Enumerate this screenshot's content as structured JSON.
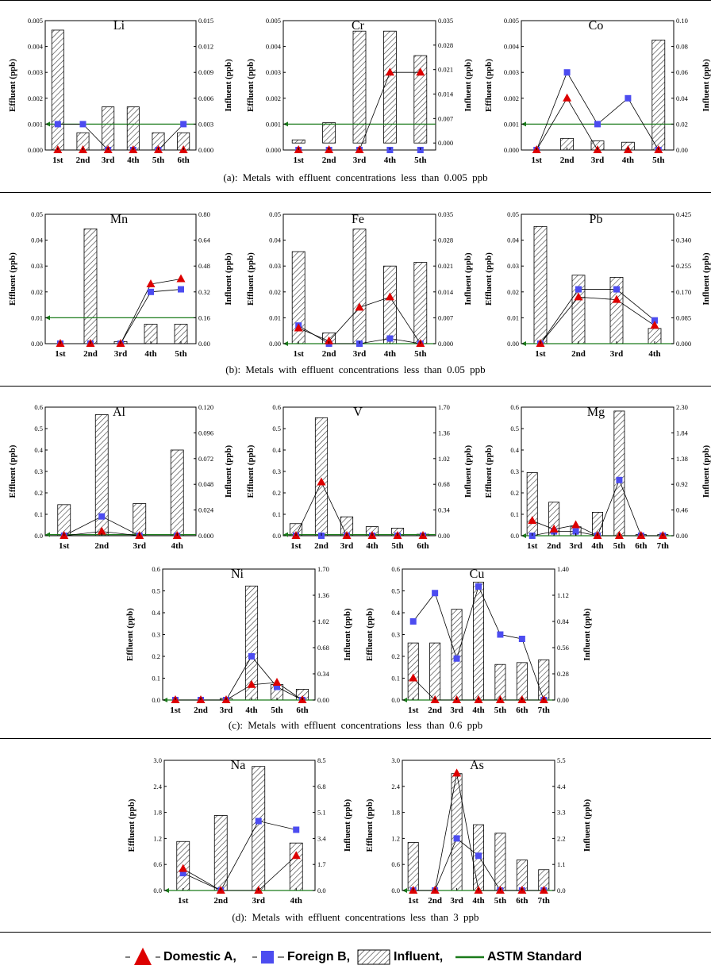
{
  "sections": [
    {
      "caption": "(a):  Metals  with  effluent  concentrations  less  than  0.005  ppb"
    },
    {
      "caption": "(b):  Metals  with  effluent  concentrations  less  than  0.05  ppb"
    },
    {
      "caption": "(c):  Metals  with  effluent  concentrations  less  than  0.6  ppb"
    },
    {
      "caption": "(d):  Metals  with  effluent  concentrations  less  than  3  ppb"
    }
  ],
  "legend": {
    "domestic": "Domestic A,",
    "foreign": "Foreign B,",
    "influent": "Influent,",
    "astm": "ASTM Standard"
  },
  "colors": {
    "domestic": "#dd0000",
    "foreign": "#4c4cf0",
    "astm": "#1a7a1a",
    "bar_hatch": "#333333"
  },
  "chart_data": [
    {
      "type": "bar+line",
      "title": "Li",
      "ylabel": "Effluent (ppb)",
      "y2label": "Influent (ppb)",
      "categories": [
        "1st",
        "2nd",
        "3rd",
        "4th",
        "5th",
        "6th"
      ],
      "ylim": [
        0,
        0.005
      ],
      "yticks": [
        "0.000",
        "0.001",
        "0.002",
        "0.003",
        "0.004",
        "0.005"
      ],
      "y2lim": [
        0,
        0.015
      ],
      "y2ticks": [
        "0.000",
        "0.003",
        "0.006",
        "0.009",
        "0.012",
        "0.015"
      ],
      "influent": [
        0.0139,
        0.002,
        0.005,
        0.005,
        0.002,
        0.002
      ],
      "domestic": [
        0,
        0,
        0,
        0,
        0,
        0
      ],
      "foreign": [
        0.001,
        0.001,
        0,
        0,
        0,
        0.001
      ],
      "astm": 0.001
    },
    {
      "type": "bar+line",
      "title": "Cr",
      "ylabel": "Effluent (ppb)",
      "y2label": "Influent (ppb)",
      "categories": [
        "1st",
        "2nd",
        "3rd",
        "4th",
        "5th"
      ],
      "ylim": [
        0,
        0.005
      ],
      "yticks": [
        "0.000",
        "0.001",
        "0.002",
        "0.003",
        "0.004",
        "0.005"
      ],
      "y2lim": [
        -0.002,
        0.035
      ],
      "y2ticks": [
        "0.000",
        "0.007",
        "0.014",
        "0.021",
        "0.028",
        "0.035"
      ],
      "influent": [
        0.0009,
        0.0058,
        0.032,
        0.032,
        0.025
      ],
      "domestic": [
        0,
        0,
        0,
        0.003,
        0.003
      ],
      "foreign": [
        0,
        0,
        0,
        0,
        0
      ],
      "astm": 0.001
    },
    {
      "type": "bar+line",
      "title": "Co",
      "ylabel": "Effluent (ppb)",
      "y2label": "Influent (ppb)",
      "categories": [
        "1st",
        "2nd",
        "3rd",
        "4th",
        "5th"
      ],
      "ylim": [
        0,
        0.005
      ],
      "yticks": [
        "0.000",
        "0.001",
        "0.002",
        "0.003",
        "0.004",
        "0.005"
      ],
      "y2lim": [
        0,
        0.1
      ],
      "y2ticks": [
        "0.00",
        "0.02",
        "0.04",
        "0.06",
        "0.08",
        "0.10"
      ],
      "influent": [
        0,
        0.009,
        0.007,
        0.006,
        0.085
      ],
      "domestic": [
        0,
        0.002,
        0,
        0,
        0
      ],
      "foreign": [
        0,
        0.003,
        0.001,
        0.002,
        0
      ],
      "astm": 0.001
    },
    {
      "type": "bar+line",
      "title": "Mn",
      "ylabel": "Effluent (ppb)",
      "y2label": "Influent (ppb)",
      "categories": [
        "1st",
        "2nd",
        "3rd",
        "4th",
        "5th"
      ],
      "ylim": [
        0,
        0.05
      ],
      "yticks": [
        "0.00",
        "0.01",
        "0.02",
        "0.03",
        "0.04",
        "0.05"
      ],
      "y2lim": [
        0,
        0.8
      ],
      "y2ticks": [
        "0.00",
        "0.16",
        "0.32",
        "0.48",
        "0.64",
        "0.80"
      ],
      "influent": [
        0,
        0.71,
        0.013,
        0.12,
        0.12
      ],
      "domestic": [
        0,
        0,
        0,
        0.023,
        0.025
      ],
      "foreign": [
        0,
        0,
        0,
        0.02,
        0.021
      ],
      "astm": 0.01
    },
    {
      "type": "bar+line",
      "title": "Fe",
      "ylabel": "Effluent (ppb)",
      "y2label": "Influent (ppb)",
      "categories": [
        "1st",
        "2nd",
        "3rd",
        "4th",
        "5th"
      ],
      "ylim": [
        0,
        0.05
      ],
      "yticks": [
        "0.00",
        "0.01",
        "0.02",
        "0.03",
        "0.04",
        "0.05"
      ],
      "y2lim": [
        0,
        0.035
      ],
      "y2ticks": [
        "0.000",
        "0.007",
        "0.014",
        "0.021",
        "0.028",
        "0.035"
      ],
      "influent": [
        0.0249,
        0.0029,
        0.031,
        0.021,
        0.022
      ],
      "domestic": [
        0.006,
        0.001,
        0.014,
        0.018,
        0
      ],
      "foreign": [
        0.007,
        0,
        0,
        0.002,
        0
      ],
      "astm": 0
    },
    {
      "type": "bar+line",
      "title": "Pb",
      "ylabel": "Effluent (ppb)",
      "y2label": "Influent (ppb)",
      "categories": [
        "1st",
        "2nd",
        "3rd",
        "4th"
      ],
      "ylim": [
        0,
        0.05
      ],
      "yticks": [
        "0.00",
        "0.01",
        "0.02",
        "0.03",
        "0.04",
        "0.05"
      ],
      "y2lim": [
        0,
        0.425
      ],
      "y2ticks": [
        "0.000",
        "0.085",
        "0.170",
        "0.255",
        "0.340",
        "0.425"
      ],
      "influent": [
        0.385,
        0.225,
        0.218,
        0.05
      ],
      "domestic": [
        0,
        0.018,
        0.017,
        0.007
      ],
      "foreign": [
        0,
        0.021,
        0.021,
        0.009
      ],
      "astm": 0
    },
    {
      "type": "bar+line",
      "title": "Al",
      "ylabel": "Effluent (ppb)",
      "y2label": "Influent (ppb)",
      "categories": [
        "1st",
        "2nd",
        "3rd",
        "4th"
      ],
      "ylim": [
        0,
        0.6
      ],
      "yticks": [
        "0.0",
        "0.1",
        "0.2",
        "0.3",
        "0.4",
        "0.5",
        "0.6"
      ],
      "y2lim": [
        0,
        0.12
      ],
      "y2ticks": [
        "0.000",
        "0.024",
        "0.048",
        "0.072",
        "0.096",
        "0.120"
      ],
      "influent": [
        0.029,
        0.113,
        0.03,
        0.08
      ],
      "domestic": [
        0,
        0.02,
        0,
        0
      ],
      "foreign": [
        0,
        0.09,
        0,
        0
      ],
      "astm": 0.005
    },
    {
      "type": "bar+line",
      "title": "V",
      "ylabel": "Effluent (ppb)",
      "y2label": "Influent (ppb)",
      "categories": [
        "1st",
        "2nd",
        "3rd",
        "4th",
        "5th",
        "6th"
      ],
      "ylim": [
        0,
        0.6
      ],
      "yticks": [
        "0.0",
        "0.1",
        "0.2",
        "0.3",
        "0.4",
        "0.5",
        "0.6"
      ],
      "y2lim": [
        0,
        1.7
      ],
      "y2ticks": [
        "0.00",
        "0.34",
        "0.68",
        "1.02",
        "1.36",
        "1.70"
      ],
      "influent": [
        0.16,
        1.56,
        0.25,
        0.12,
        0.1,
        0.02
      ],
      "domestic": [
        0,
        0.25,
        0,
        0,
        0,
        0
      ],
      "foreign": [
        0,
        0,
        0,
        0,
        0,
        0
      ],
      "astm": 0.005
    },
    {
      "type": "bar+line",
      "title": "Mg",
      "ylabel": "Effluent (ppb)",
      "y2label": "Influent (ppb)",
      "categories": [
        "1st",
        "2nd",
        "3rd",
        "4th",
        "5th",
        "6th",
        "7th"
      ],
      "ylim": [
        0,
        0.6
      ],
      "yticks": [
        "0.0",
        "0.1",
        "0.2",
        "0.3",
        "0.4",
        "0.5",
        "0.6"
      ],
      "y2lim": [
        0,
        2.3
      ],
      "y2ticks": [
        "0.00",
        "0.46",
        "0.92",
        "1.38",
        "1.84",
        "2.30"
      ],
      "influent": [
        1.13,
        0.6,
        0.16,
        0.42,
        2.23,
        0.02,
        0.02
      ],
      "domestic": [
        0.07,
        0.03,
        0.05,
        0,
        0,
        0,
        0
      ],
      "foreign": [
        0,
        0.02,
        0.02,
        0,
        0.26,
        0,
        0
      ],
      "astm": 0
    },
    {
      "type": "bar+line",
      "title": "Ni",
      "ylabel": "Effluent (ppb)",
      "y2label": "Influent (ppb)",
      "categories": [
        "1st",
        "2nd",
        "3rd",
        "4th",
        "5th",
        "6th"
      ],
      "ylim": [
        0,
        0.6
      ],
      "yticks": [
        "0.0",
        "0.1",
        "0.2",
        "0.3",
        "0.4",
        "0.5",
        "0.6"
      ],
      "y2lim": [
        0,
        1.7
      ],
      "y2ticks": [
        "0.00",
        "0.34",
        "0.68",
        "1.02",
        "1.36",
        "1.70"
      ],
      "influent": [
        0,
        0,
        0.02,
        1.48,
        0.2,
        0.14
      ],
      "domestic": [
        0,
        0,
        0,
        0.07,
        0.08,
        0
      ],
      "foreign": [
        0,
        0,
        0,
        0.2,
        0.06,
        0
      ],
      "astm": 0
    },
    {
      "type": "bar+line",
      "title": "Cu",
      "ylabel": "Effluent (ppb)",
      "y2label": "Influent (ppb)",
      "categories": [
        "1st",
        "2nd",
        "3rd",
        "4th",
        "5th",
        "6th",
        "7th"
      ],
      "ylim": [
        0,
        0.6
      ],
      "yticks": [
        "0.0",
        "0.1",
        "0.2",
        "0.3",
        "0.4",
        "0.5",
        "0.6"
      ],
      "y2lim": [
        0,
        1.4
      ],
      "y2ticks": [
        "0.00",
        "0.28",
        "0.56",
        "0.84",
        "1.12",
        "1.40"
      ],
      "influent": [
        0.61,
        0.61,
        0.97,
        1.26,
        0.38,
        0.4,
        0.43
      ],
      "domestic": [
        0.1,
        0,
        0,
        0,
        0,
        0,
        0
      ],
      "foreign": [
        0.36,
        0.49,
        0.19,
        0.52,
        0.3,
        0.28,
        0
      ],
      "astm": 0
    },
    {
      "type": "bar+line",
      "title": "Na",
      "ylabel": "Effluent (ppb)",
      "y2label": "Influent (ppb)",
      "categories": [
        "1st",
        "2nd",
        "3rd",
        "4th"
      ],
      "ylim": [
        0,
        3.0
      ],
      "yticks": [
        "0.0",
        "0.6",
        "1.2",
        "1.8",
        "2.4",
        "3.0"
      ],
      "y2lim": [
        0,
        8.5
      ],
      "y2ticks": [
        "0.0",
        "1.7",
        "3.4",
        "5.1",
        "6.8",
        "8.5"
      ],
      "influent": [
        3.2,
        4.9,
        8.1,
        3.1
      ],
      "domestic": [
        0.5,
        0,
        0,
        0.8
      ],
      "foreign": [
        0.4,
        0,
        1.6,
        1.4
      ],
      "astm": 0
    },
    {
      "type": "bar+line",
      "title": "As",
      "ylabel": "Effluent (ppb)",
      "y2label": "Influent (ppb)",
      "categories": [
        "1st",
        "2nd",
        "3rd",
        "4th",
        "5th",
        "6th",
        "7th"
      ],
      "ylim": [
        0,
        3.0
      ],
      "yticks": [
        "0.0",
        "0.6",
        "1.2",
        "1.8",
        "2.4",
        "3.0"
      ],
      "y2lim": [
        0,
        5.5
      ],
      "y2ticks": [
        "0.0",
        "1.1",
        "2.2",
        "3.3",
        "4.4",
        "5.5"
      ],
      "influent": [
        2.03,
        0,
        4.94,
        2.78,
        2.42,
        1.29,
        0.88
      ],
      "domestic": [
        0,
        0,
        2.7,
        0,
        0,
        0,
        0
      ],
      "foreign": [
        0,
        0,
        1.2,
        0.8,
        0,
        0,
        0
      ],
      "astm": 0
    }
  ]
}
